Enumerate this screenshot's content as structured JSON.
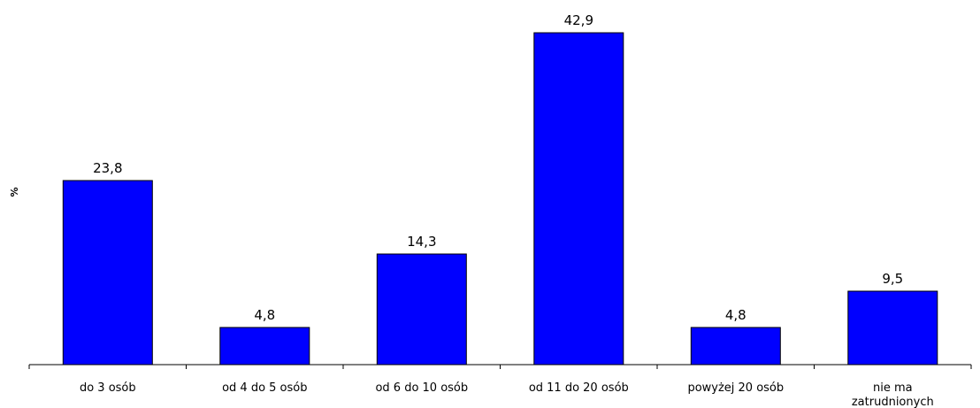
{
  "chart_data": {
    "type": "bar",
    "title": "",
    "xlabel": "",
    "ylabel": "%",
    "ylim": [
      0,
      44
    ],
    "grid": false,
    "legend": "none",
    "categories": [
      [
        "do 3 osób"
      ],
      [
        "od 4 do 5 osób"
      ],
      [
        "od 6 do 10 osób"
      ],
      [
        "od 11 do 20 osób"
      ],
      [
        "powyżej 20 osób"
      ],
      [
        "nie ma",
        "zatrudnionych"
      ]
    ],
    "values": [
      23.8,
      4.8,
      14.3,
      42.9,
      4.8,
      9.5
    ],
    "data_labels": [
      "23,8",
      "4,8",
      "14,3",
      "42,9",
      "4,8",
      "9,5"
    ],
    "colors": {
      "bar_fill": "#0000ff",
      "bar_stroke": "#000000",
      "axis": "#000000"
    }
  }
}
